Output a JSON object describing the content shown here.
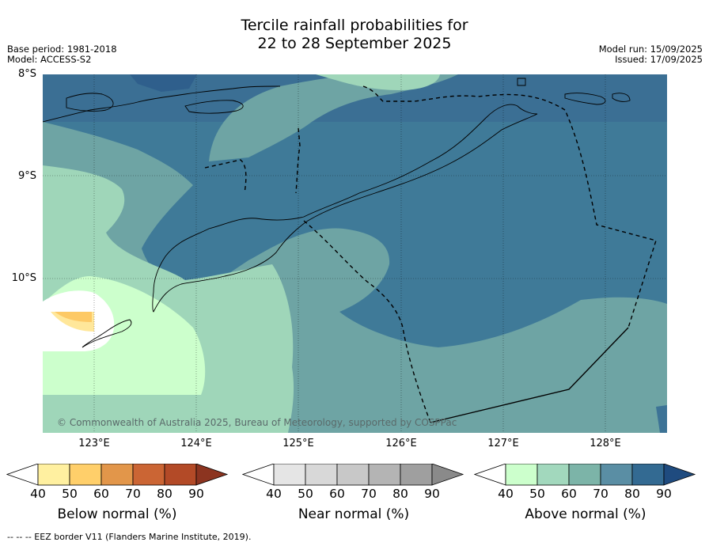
{
  "header": {
    "title_line1": "Tercile rainfall probabilities for",
    "title_line2": "22 to 28 September 2025",
    "base_period": "Base period: 1981-2018",
    "model": "Model: ACCESS-S2",
    "model_run": "Model run: 15/09/2025",
    "issued": "Issued: 17/09/2025"
  },
  "map": {
    "lat_labels": [
      "8°S",
      "9°S",
      "10°S"
    ],
    "lon_labels": [
      "123°E",
      "124°E",
      "125°E",
      "126°E",
      "127°E",
      "128°E"
    ],
    "copyright": "© Commonwealth of Australia 2025, Bureau of Meteorology, supported by COSPPac",
    "colors": {
      "above_40": "#ccffcc",
      "above_50": "#9fd6b9",
      "above_60": "#6fa6a6",
      "above_70": "#4a86a0",
      "above_80": "#3d7396",
      "above_90": "#2e5f8a",
      "below_50": "#ffe79a",
      "below_60": "#fdc965"
    }
  },
  "legends": [
    {
      "label": "Below normal (%)",
      "ticks": [
        "40",
        "50",
        "60",
        "70",
        "80",
        "90"
      ],
      "colors": [
        "#ffffff",
        "#fff0a0",
        "#ffcf6a",
        "#e2964a",
        "#cb6534",
        "#b34a27",
        "#8c3420"
      ]
    },
    {
      "label": "Near normal (%)",
      "ticks": [
        "40",
        "50",
        "60",
        "70",
        "80",
        "90"
      ],
      "colors": [
        "#ffffff",
        "#e5e5e5",
        "#d8d8d8",
        "#c8c8c8",
        "#b4b4b4",
        "#9f9f9f",
        "#8a8a8a"
      ]
    },
    {
      "label": "Above normal (%)",
      "ticks": [
        "40",
        "50",
        "60",
        "70",
        "80",
        "90"
      ],
      "colors": [
        "#ffffff",
        "#ccffcc",
        "#a2d8bd",
        "#7cb4a8",
        "#5a8ea4",
        "#336a92",
        "#1f4b7f"
      ]
    }
  ],
  "footnote": "--  --  -- EEZ border V11 (Flanders Marine Institute, 2019)."
}
